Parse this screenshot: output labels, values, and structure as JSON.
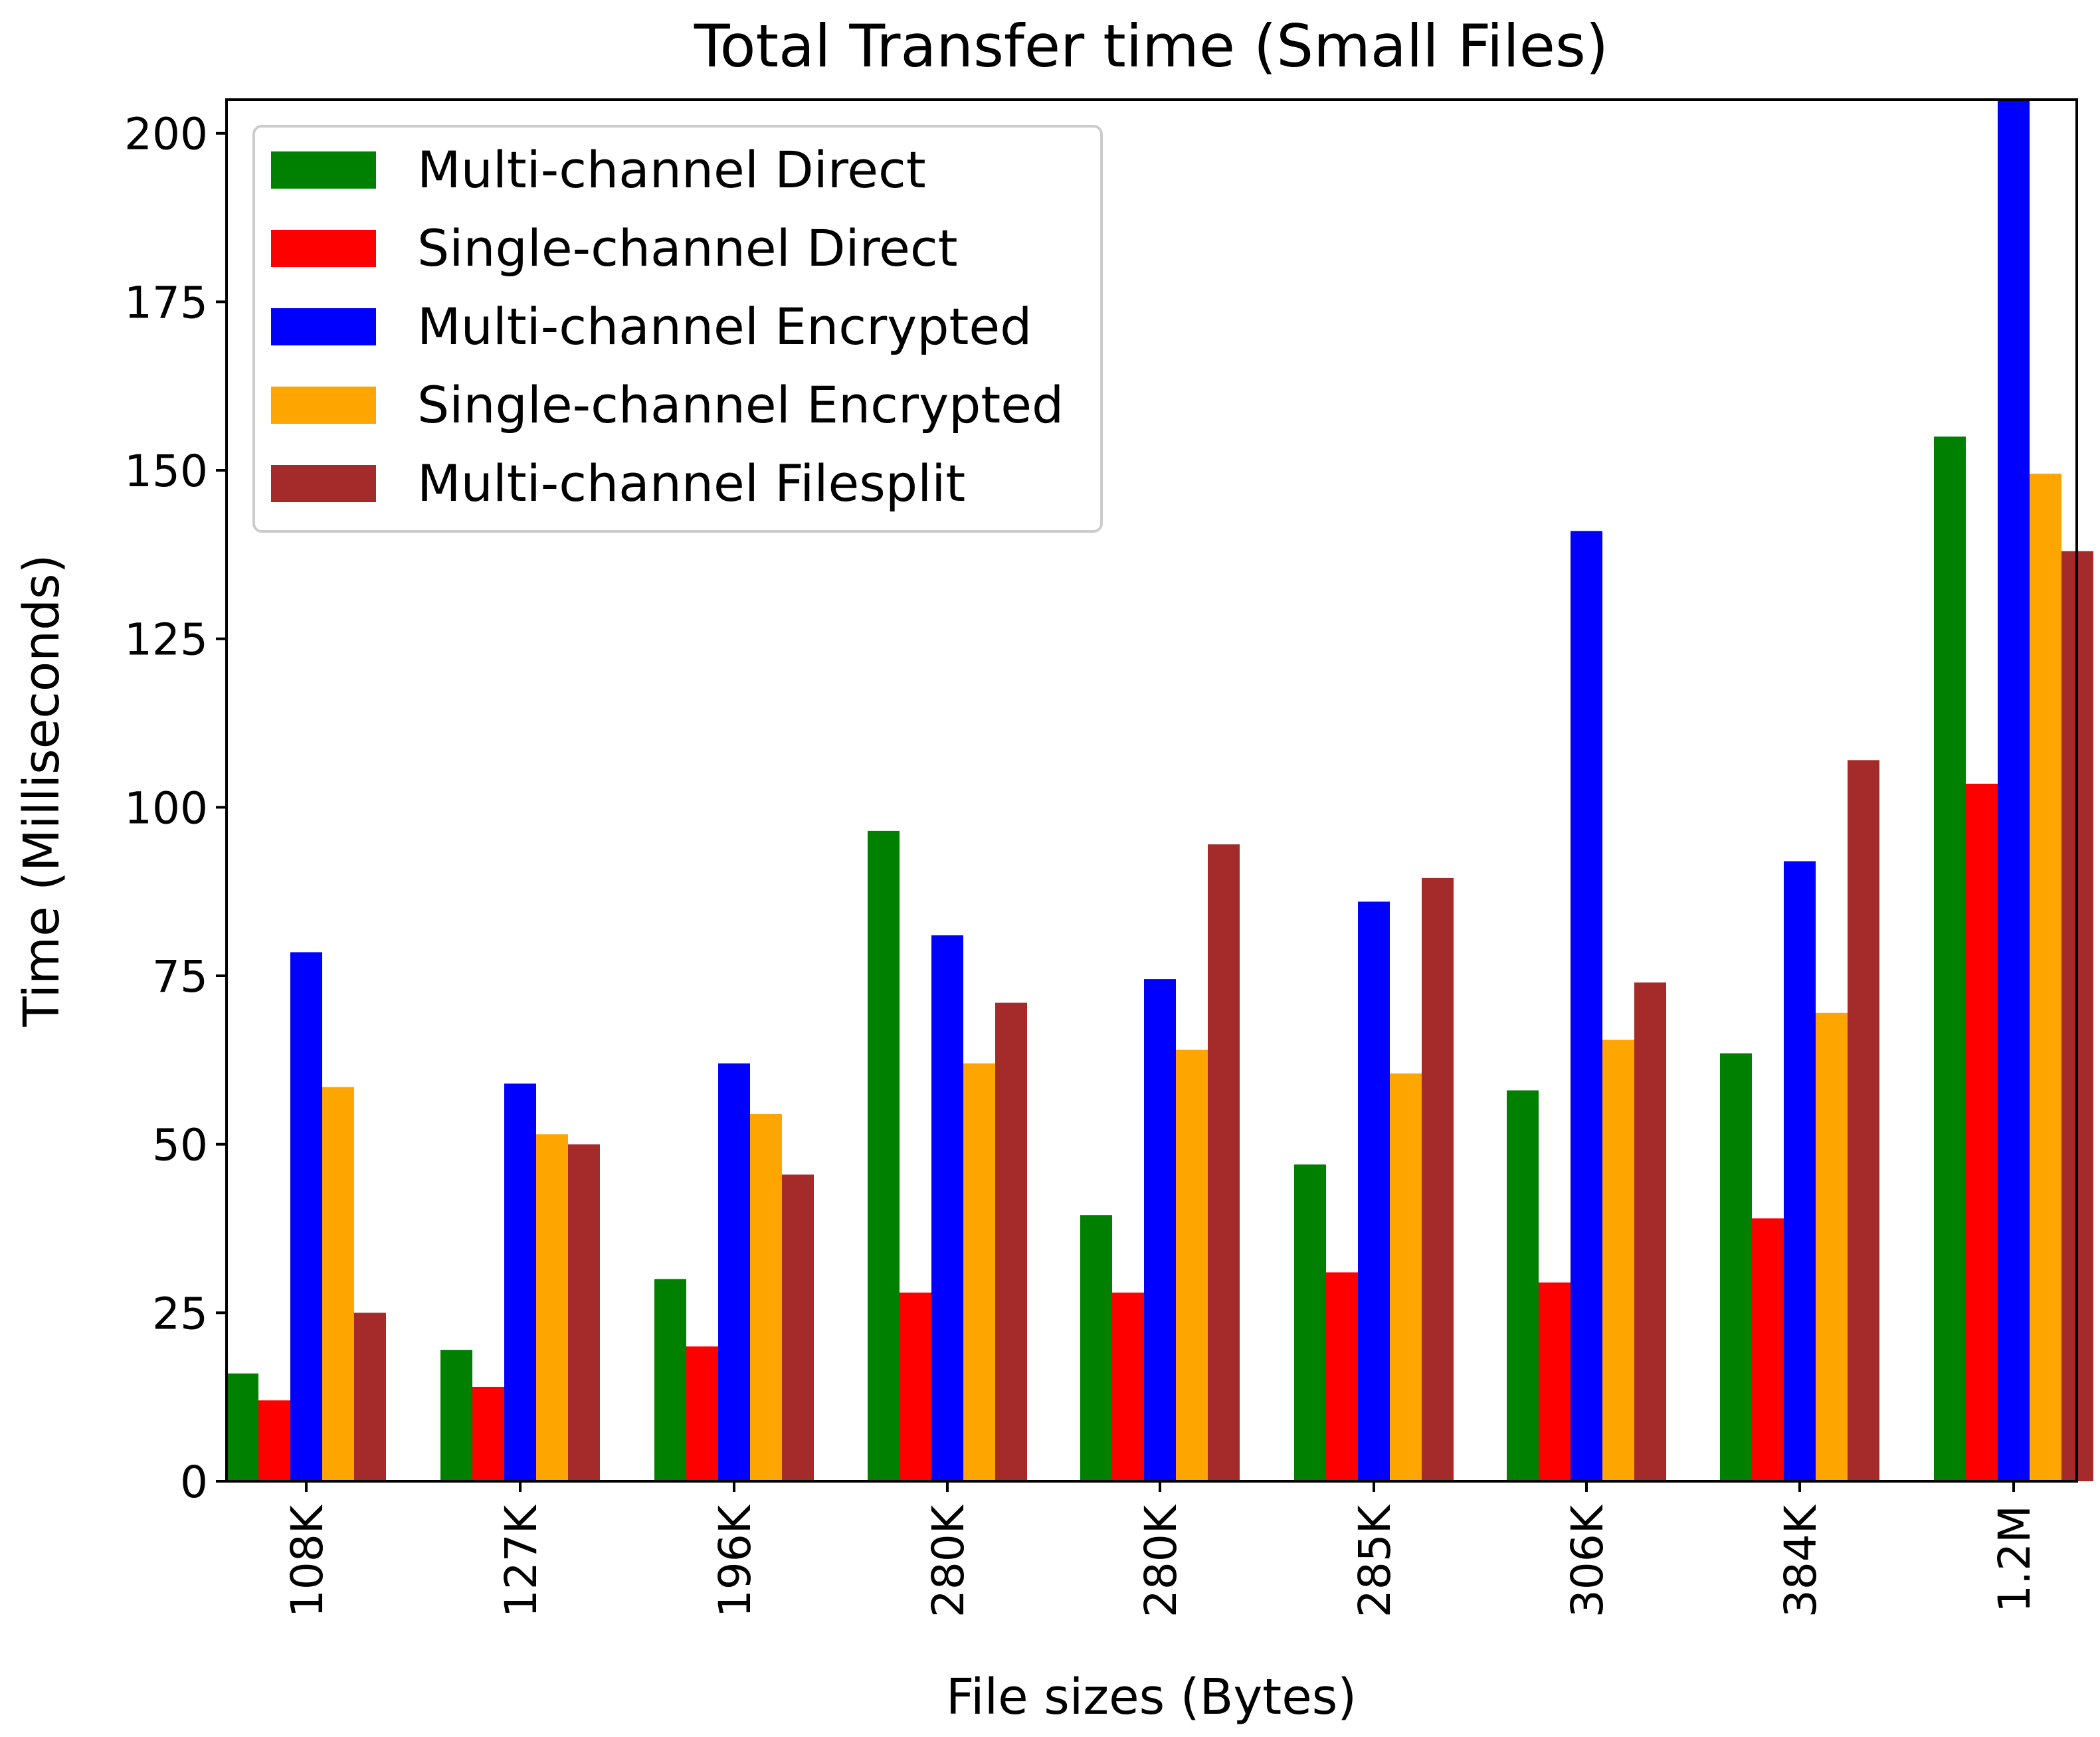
{
  "chart_data": {
    "type": "bar",
    "title": "Total Transfer time (Small Files)",
    "xlabel": "File sizes (Bytes)",
    "ylabel": "Time (Milliseconds)",
    "categories": [
      "108K",
      "127K",
      "196K",
      "280K",
      "280K",
      "285K",
      "306K",
      "384K",
      "1.2M"
    ],
    "ylim": [
      0,
      205
    ],
    "yticks": [
      0,
      25,
      50,
      75,
      100,
      125,
      150,
      175,
      200
    ],
    "legend_position": "top-left",
    "grid": false,
    "series": [
      {
        "name": "Multi-channel Direct",
        "color": "#008000",
        "values": [
          16,
          19.5,
          30,
          96.5,
          39.5,
          47,
          58,
          63.5,
          155
        ]
      },
      {
        "name": "Single-channel Direct",
        "color": "#ff0000",
        "values": [
          12,
          14,
          20,
          28,
          28,
          31,
          29.5,
          39,
          103.5
        ]
      },
      {
        "name": "Multi-channel Encrypted",
        "color": "#0000ff",
        "values": [
          78.5,
          59,
          62,
          81,
          74.5,
          86,
          141,
          92,
          210
        ]
      },
      {
        "name": "Single-channel Encrypted",
        "color": "#ffa500",
        "values": [
          58.5,
          51.5,
          54.5,
          62,
          64,
          60.5,
          65.5,
          69.5,
          149.5
        ]
      },
      {
        "name": "Multi-channel Filesplit",
        "color": "#a52a2a",
        "values": [
          25,
          50,
          45.5,
          71,
          94.5,
          89.5,
          74,
          107,
          138
        ]
      }
    ]
  }
}
